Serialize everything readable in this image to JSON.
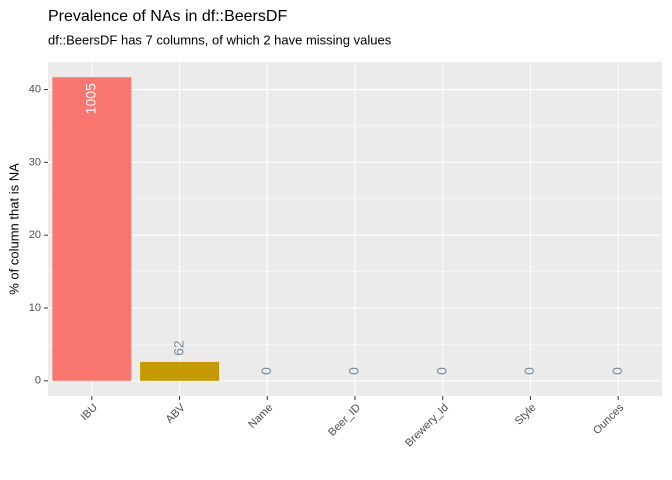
{
  "chart_data": {
    "type": "bar",
    "title": "Prevalence of NAs in df::BeersDF",
    "subtitle": "df::BeersDF has 7 columns, of which 2 have missing values",
    "y_label": "% of column that is NA",
    "categories": [
      "IBU",
      "ABV",
      "Name",
      "Beer_ID",
      "Brewery_Id",
      "Style",
      "Ounces"
    ],
    "values": [
      41.7,
      2.6,
      0,
      0,
      0,
      0,
      0
    ],
    "na_counts": [
      1005,
      62,
      0,
      0,
      0,
      0,
      0
    ],
    "colors": [
      "#F8766D",
      "#C49A00",
      "#53B400",
      "#00C094",
      "#00B6EB",
      "#A58AFF",
      "#FB61D7"
    ],
    "ylim": [
      -2.085,
      43.785
    ],
    "yticks": [
      0,
      10,
      20,
      30,
      40
    ],
    "grid": true
  }
}
